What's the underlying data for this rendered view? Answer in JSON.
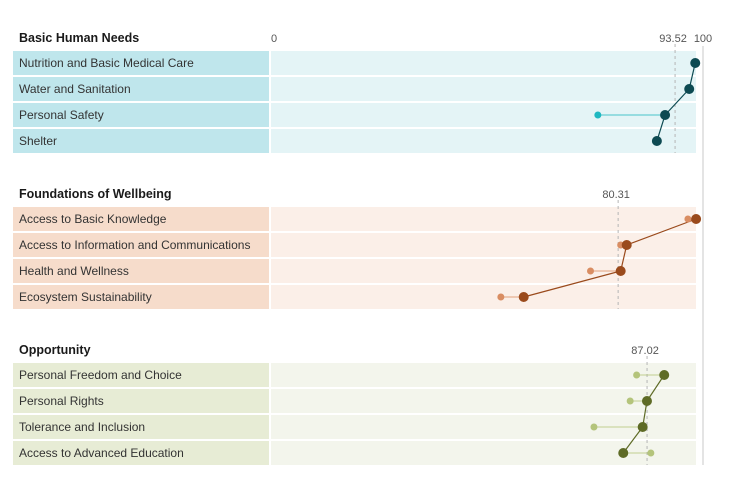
{
  "chart_data": {
    "type": "dot",
    "scale": {
      "min": 0,
      "max": 100,
      "tick_labels": [
        "0",
        "100"
      ]
    },
    "sections": [
      {
        "title": "Basic Human Needs",
        "reference_label": "93.52",
        "reference_value": 93.52,
        "colors": {
          "label_bg": "#bfe6ec",
          "bar_bg": "#e4f4f6",
          "dot_main": "#0d4a52",
          "dot_alt": "#1fb8c1",
          "line": "#0d4a52"
        },
        "rows": [
          {
            "label": "Nutrition and Basic Medical Care",
            "main": 98.2,
            "alt": 98.0
          },
          {
            "label": "Water and Sanitation",
            "main": 96.8,
            "alt": 96.6
          },
          {
            "label": "Personal Safety",
            "main": 91.2,
            "alt": 75.6
          },
          {
            "label": "Shelter",
            "main": 89.3,
            "alt": 89.0
          }
        ]
      },
      {
        "title": "Foundations of Wellbeing",
        "reference_label": "80.31",
        "reference_value": 80.31,
        "colors": {
          "label_bg": "#f6dccb",
          "bar_bg": "#fbefe8",
          "dot_main": "#9a4a1c",
          "dot_alt": "#d98d62",
          "line": "#9a4a1c"
        },
        "rows": [
          {
            "label": "Access to Basic Knowledge",
            "main": 98.4,
            "alt": 96.5
          },
          {
            "label": "Access to Information and Communications",
            "main": 82.3,
            "alt": 80.9
          },
          {
            "label": "Health and Wellness",
            "main": 80.9,
            "alt": 73.9
          },
          {
            "label": "Ecosystem Sustainability",
            "main": 58.4,
            "alt": 53.1
          }
        ]
      },
      {
        "title": "Opportunity",
        "reference_label": "87.02",
        "reference_value": 87.02,
        "colors": {
          "label_bg": "#e7ecd5",
          "bar_bg": "#f3f5ec",
          "dot_main": "#5e6b26",
          "dot_alt": "#b4c47b",
          "line": "#5e6b26"
        },
        "rows": [
          {
            "label": "Personal Freedom and Choice",
            "main": 91.0,
            "alt": 84.6
          },
          {
            "label": "Personal Rights",
            "main": 87.0,
            "alt": 83.1
          },
          {
            "label": "Tolerance and Inclusion",
            "main": 86.0,
            "alt": 74.7
          },
          {
            "label": "Access to Advanced Education",
            "main": 81.5,
            "alt": 87.9
          }
        ]
      }
    ]
  }
}
